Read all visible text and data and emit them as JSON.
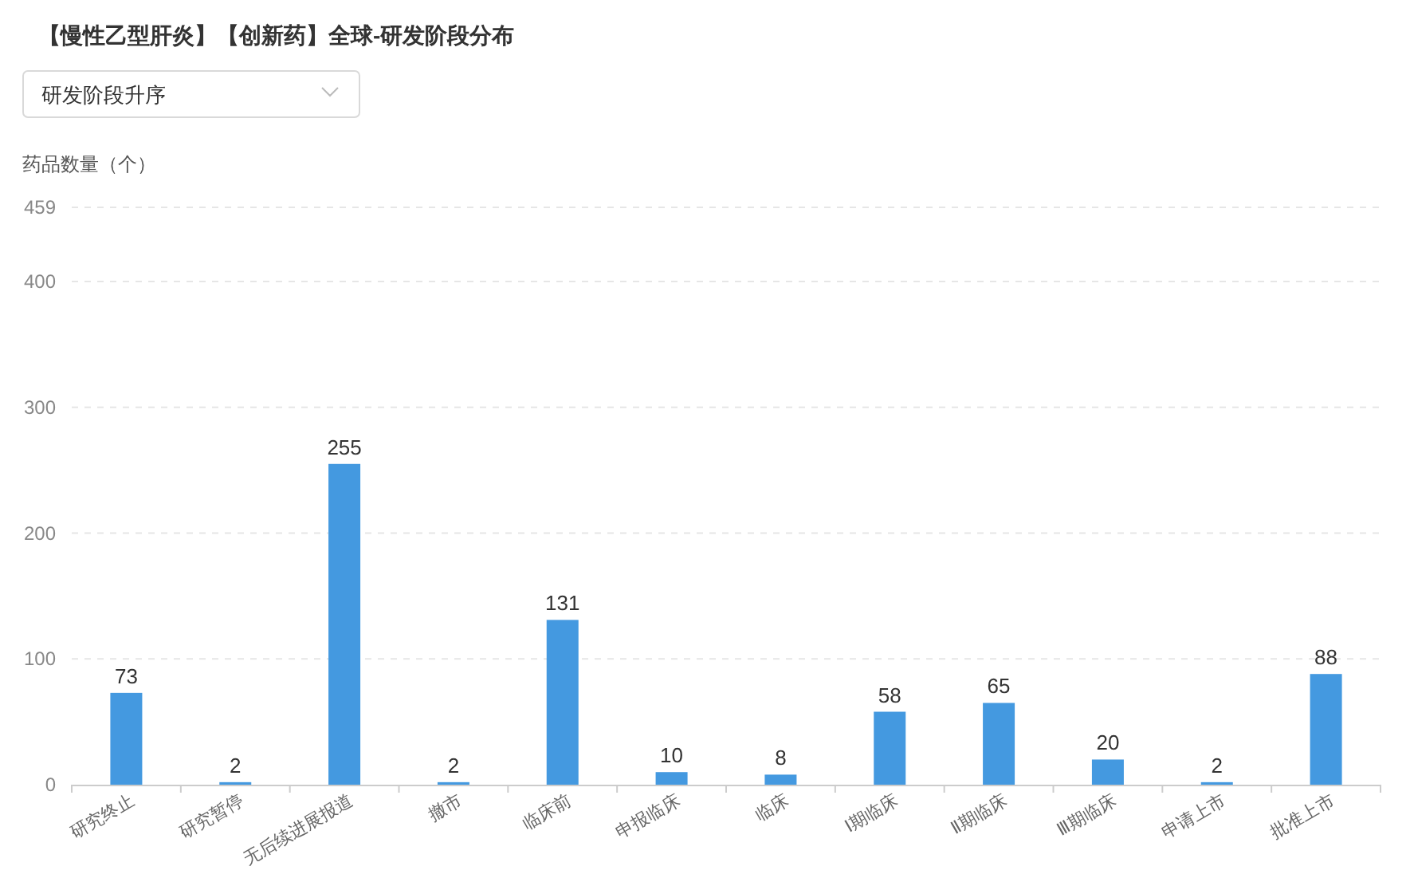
{
  "chart_data": {
    "type": "bar",
    "title": "【慢性乙型肝炎】【创新药】全球-研发阶段分布",
    "annotations": [
      "研发阶段升序"
    ],
    "ylabel": "药品数量（个）",
    "categories": [
      "研究终止",
      "研究暂停",
      "无后续进展报道",
      "撤市",
      "临床前",
      "申报临床",
      "临床",
      "Ⅰ期临床",
      "Ⅱ期临床",
      "Ⅲ期临床",
      "申请上市",
      "批准上市"
    ],
    "values": [
      73,
      2,
      255,
      2,
      131,
      10,
      8,
      58,
      65,
      20,
      2,
      88
    ],
    "color": "#4499e0",
    "ylim": [
      0,
      459
    ],
    "yticks": [
      0,
      100,
      200,
      300,
      400,
      459
    ],
    "grid": "y",
    "data_labels": true
  }
}
